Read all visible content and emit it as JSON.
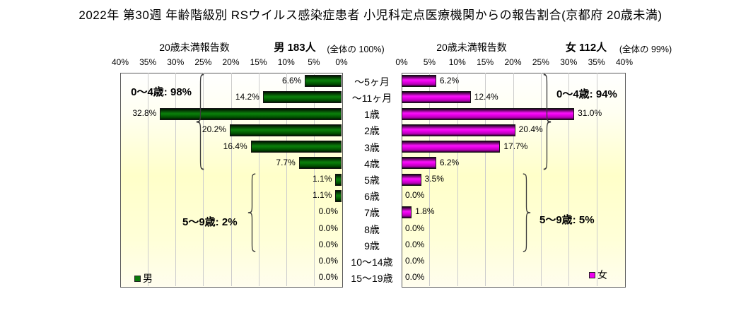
{
  "title": "2022年 第30週 年齢階級別 RSウイルス感染症患者 小児科定点医療機関からの報告割合(京都府 20歳未満)",
  "panels": {
    "left": {
      "report_label": "20歳未満報告数",
      "total_label": "男 183人",
      "share_label": "(全体の 100%)",
      "legend_label": "男"
    },
    "right": {
      "report_label": "20歳未満報告数",
      "total_label": "女 112人",
      "share_label": "(全体の 99%)",
      "legend_label": "女"
    }
  },
  "colors": {
    "male_bar": "#0b7a0b",
    "female_bar": "#ee00ee",
    "plot_bg_top": "#ffffff",
    "plot_bg_mid": "#ffffc9",
    "grid": "#cccccc",
    "border": "#5a5a5a"
  },
  "chart_data": {
    "type": "bar",
    "orientation": "horizontal",
    "layout": "tornado",
    "title": "2022年 第30週 年齢階級別 RSウイルス感染症患者 小児科定点医療機関からの報告割合(京都府 20歳未満)",
    "categories": [
      "〜5ヶ月",
      "〜11ヶ月",
      "1歳",
      "2歳",
      "3歳",
      "4歳",
      "5歳",
      "6歳",
      "7歳",
      "8歳",
      "9歳",
      "10〜14歳",
      "15〜19歳"
    ],
    "series": [
      {
        "name": "男",
        "side": "left",
        "total_people": 183,
        "share_of_total": "100%",
        "values": [
          6.6,
          14.2,
          32.8,
          20.2,
          16.4,
          7.7,
          1.1,
          1.1,
          0.0,
          0.0,
          0.0,
          0.0,
          0.0
        ]
      },
      {
        "name": "女",
        "side": "right",
        "total_people": 112,
        "share_of_total": "99%",
        "values": [
          6.2,
          12.4,
          31.0,
          20.4,
          17.7,
          6.2,
          3.5,
          0.0,
          1.8,
          0.0,
          0.0,
          0.0,
          0.0
        ]
      }
    ],
    "value_label_suffix": "%",
    "axis": {
      "max": 40,
      "step": 5,
      "grid": true,
      "ticks_left": [
        "40%",
        "35%",
        "30%",
        "25%",
        "20%",
        "15%",
        "10%",
        "5%",
        "0%"
      ],
      "ticks_right": [
        "0%",
        "5%",
        "10%",
        "15%",
        "20%",
        "25%",
        "30%",
        "35%",
        "40%"
      ]
    },
    "annotations": [
      {
        "side": "left",
        "text": "0〜4歳: 98%",
        "row_start": 0,
        "row_end": 5
      },
      {
        "side": "left",
        "text": "5〜9歳: 2%",
        "row_start": 6,
        "row_end": 10
      },
      {
        "side": "right",
        "text": "0〜4歳: 94%",
        "row_start": 0,
        "row_end": 5
      },
      {
        "side": "right",
        "text": "5〜9歳: 5%",
        "row_start": 6,
        "row_end": 10
      }
    ]
  }
}
